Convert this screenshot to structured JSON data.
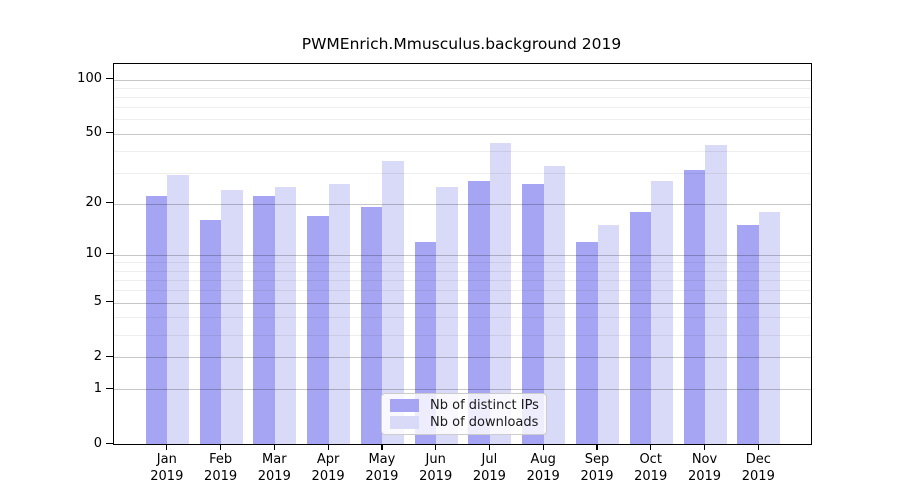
{
  "title": "PWMEnrich.Mmusculus.background 2019",
  "chart_data": {
    "type": "bar",
    "title": "PWMEnrich.Mmusculus.background 2019",
    "categories": [
      "Jan",
      "Feb",
      "Mar",
      "Apr",
      "May",
      "Jun",
      "Jul",
      "Aug",
      "Sep",
      "Oct",
      "Nov",
      "Dec"
    ],
    "x_sub_label": "2019",
    "series": [
      {
        "name": "Nb of distinct IPs",
        "color": "#a5a5f3",
        "values": [
          22,
          16,
          22,
          17,
          19,
          12,
          27,
          26,
          12,
          18,
          31,
          15
        ]
      },
      {
        "name": "Nb of downloads",
        "color": "#d9d9f8",
        "values": [
          29,
          24,
          25,
          26,
          35,
          25,
          44,
          33,
          15,
          27,
          43,
          18
        ]
      }
    ],
    "y_axis": {
      "scale": "log1p",
      "tick_values": [
        0,
        1,
        2,
        5,
        10,
        20,
        50,
        100
      ],
      "tick_labels": [
        "0",
        "1",
        "2",
        "5",
        "10",
        "20",
        "50",
        "100"
      ],
      "minor_tick_values": [
        3,
        4,
        6,
        7,
        8,
        9,
        30,
        40,
        60,
        70,
        80,
        90
      ],
      "axis_top_value": 122
    },
    "legend": {
      "position": "lower center"
    },
    "grid": true,
    "colors": {
      "major_grid": "rgba(0,0,0,0.22)",
      "minor_grid": "rgba(0,0,0,0.065)",
      "frame": "#000000",
      "background": "#ffffff"
    }
  }
}
